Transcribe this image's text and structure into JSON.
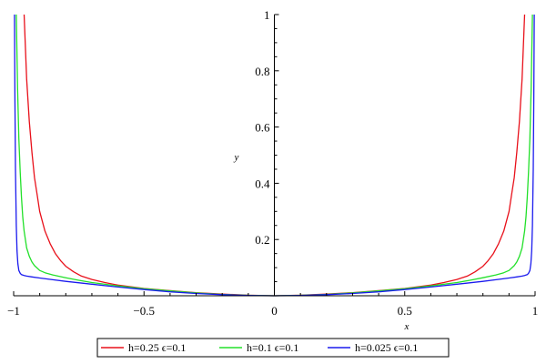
{
  "chart_data": {
    "type": "line",
    "title": "",
    "xlabel": "x",
    "ylabel": "y",
    "xlim": [
      -1,
      1
    ],
    "ylim": [
      0,
      1
    ],
    "x_ticks": [
      -1,
      -0.5,
      0,
      0.5,
      1
    ],
    "x_tick_labels": [
      "−1",
      "−0.5",
      "0",
      "0.5",
      "1"
    ],
    "y_ticks": [
      0.2,
      0.4,
      0.6,
      0.8,
      1
    ],
    "y_tick_labels": [
      "0.2",
      "0.4",
      "0.6",
      "0.8",
      "1"
    ],
    "grid": false,
    "legend_position": "bottom",
    "series": [
      {
        "name": "h=0.25 ϵ=0.1",
        "color": "#e8101a",
        "x": [
          -0.96,
          -0.95,
          -0.94,
          -0.93,
          -0.92,
          -0.91,
          -0.9,
          -0.88,
          -0.86,
          -0.84,
          -0.82,
          -0.8,
          -0.77,
          -0.74,
          -0.7,
          -0.65,
          -0.6,
          -0.5,
          -0.4,
          -0.3,
          -0.2,
          -0.1,
          0,
          0.1,
          0.2,
          0.3,
          0.4,
          0.5,
          0.6,
          0.65,
          0.7,
          0.74,
          0.77,
          0.8,
          0.82,
          0.84,
          0.86,
          0.88,
          0.9,
          0.91,
          0.92,
          0.93,
          0.94,
          0.95,
          0.96
        ],
        "y": [
          1.0,
          0.77,
          0.62,
          0.51,
          0.42,
          0.36,
          0.3,
          0.23,
          0.185,
          0.15,
          0.125,
          0.105,
          0.085,
          0.07,
          0.058,
          0.047,
          0.038,
          0.026,
          0.018,
          0.011,
          0.006,
          0.002,
          0.0,
          0.002,
          0.006,
          0.011,
          0.018,
          0.026,
          0.038,
          0.047,
          0.058,
          0.07,
          0.085,
          0.105,
          0.125,
          0.15,
          0.185,
          0.23,
          0.3,
          0.36,
          0.42,
          0.51,
          0.62,
          0.77,
          1.0
        ]
      },
      {
        "name": "h=0.1 ϵ=0.1",
        "color": "#22e02a",
        "x": [
          -0.99,
          -0.985,
          -0.98,
          -0.975,
          -0.97,
          -0.965,
          -0.96,
          -0.95,
          -0.94,
          -0.93,
          -0.92,
          -0.9,
          -0.88,
          -0.85,
          -0.8,
          -0.75,
          -0.7,
          -0.6,
          -0.5,
          -0.4,
          -0.3,
          -0.2,
          -0.1,
          0,
          0.1,
          0.2,
          0.3,
          0.4,
          0.5,
          0.6,
          0.7,
          0.75,
          0.8,
          0.85,
          0.88,
          0.9,
          0.92,
          0.93,
          0.94,
          0.95,
          0.96,
          0.965,
          0.97,
          0.975,
          0.98,
          0.985,
          0.99
        ],
        "y": [
          1.0,
          0.74,
          0.56,
          0.44,
          0.35,
          0.28,
          0.23,
          0.17,
          0.14,
          0.12,
          0.107,
          0.09,
          0.082,
          0.074,
          0.064,
          0.055,
          0.047,
          0.035,
          0.025,
          0.017,
          0.01,
          0.005,
          0.0015,
          0.0,
          0.0015,
          0.005,
          0.01,
          0.017,
          0.025,
          0.035,
          0.047,
          0.055,
          0.064,
          0.074,
          0.082,
          0.09,
          0.107,
          0.12,
          0.14,
          0.17,
          0.23,
          0.28,
          0.35,
          0.44,
          0.56,
          0.74,
          1.0
        ]
      },
      {
        "name": "h=0.025 ϵ=0.1",
        "color": "#1a1aee",
        "x": [
          -0.997,
          -0.995,
          -0.993,
          -0.99,
          -0.987,
          -0.984,
          -0.98,
          -0.975,
          -0.97,
          -0.96,
          -0.95,
          -0.93,
          -0.9,
          -0.85,
          -0.8,
          -0.7,
          -0.6,
          -0.5,
          -0.4,
          -0.3,
          -0.2,
          -0.1,
          0,
          0.1,
          0.2,
          0.3,
          0.4,
          0.5,
          0.6,
          0.7,
          0.8,
          0.85,
          0.9,
          0.93,
          0.95,
          0.96,
          0.97,
          0.975,
          0.98,
          0.984,
          0.987,
          0.99,
          0.993,
          0.995,
          0.997
        ],
        "y": [
          1.0,
          0.7,
          0.45,
          0.25,
          0.16,
          0.115,
          0.09,
          0.08,
          0.075,
          0.072,
          0.07,
          0.067,
          0.063,
          0.057,
          0.051,
          0.041,
          0.031,
          0.022,
          0.014,
          0.008,
          0.004,
          0.001,
          0.0,
          0.001,
          0.004,
          0.008,
          0.014,
          0.022,
          0.031,
          0.041,
          0.051,
          0.057,
          0.063,
          0.067,
          0.07,
          0.072,
          0.075,
          0.08,
          0.09,
          0.115,
          0.16,
          0.25,
          0.45,
          0.7,
          1.0
        ]
      }
    ]
  }
}
